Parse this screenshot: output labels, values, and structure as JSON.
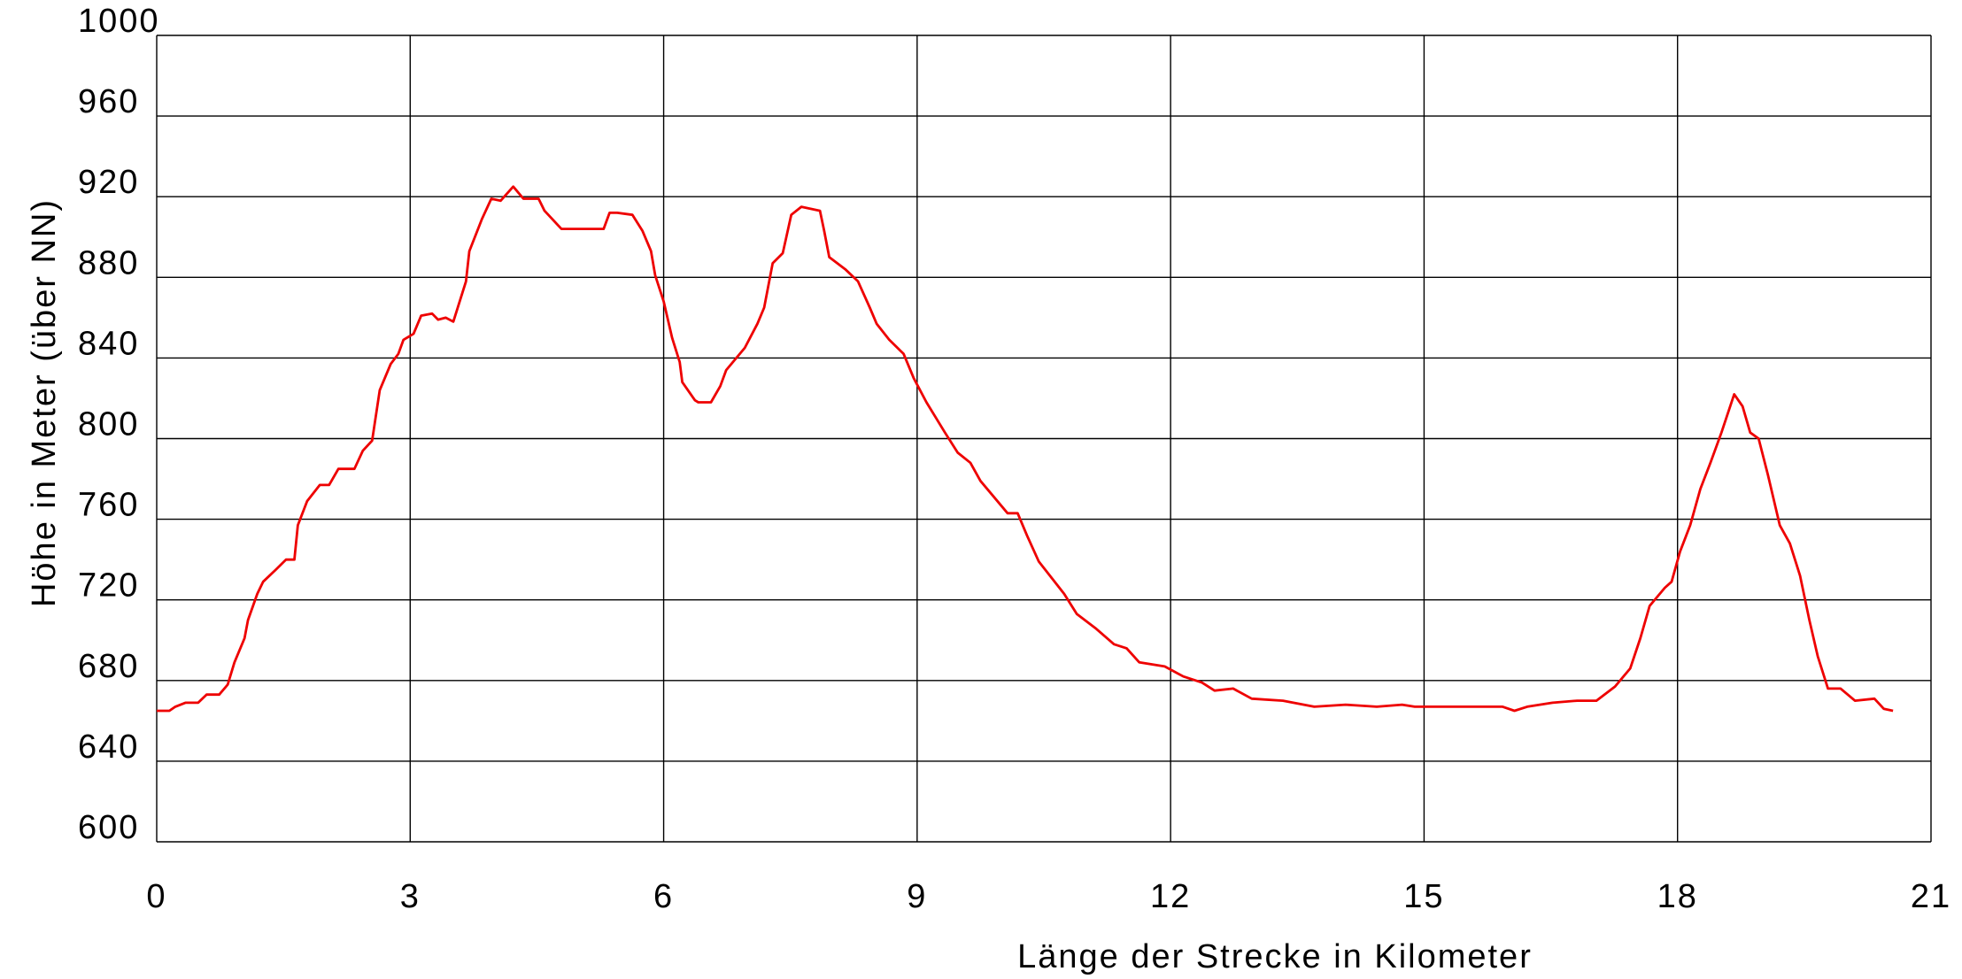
{
  "chart_data": {
    "type": "line",
    "xlabel": "Länge der Strecke in Kilometer",
    "ylabel": "Höhe in Meter (über NN)",
    "xlim": [
      0,
      21
    ],
    "xticks": [
      0,
      3,
      6,
      9,
      12,
      15,
      18,
      21
    ],
    "ylim": [
      600,
      1000
    ],
    "yticks": [
      600,
      640,
      680,
      720,
      760,
      800,
      840,
      880,
      920,
      960,
      1000
    ],
    "grid": true,
    "series": [
      {
        "color": "#ee0000",
        "x": [
          0,
          0.15,
          0.22,
          0.34,
          0.49,
          0.59,
          0.74,
          0.84,
          0.92,
          1.04,
          1.08,
          1.19,
          1.26,
          1.41,
          1.53,
          1.63,
          1.67,
          1.78,
          1.93,
          2.04,
          2.15,
          2.34,
          2.44,
          2.55,
          2.64,
          2.77,
          2.86,
          2.92,
          3.04,
          3.13,
          3.26,
          3.33,
          3.42,
          3.51,
          3.66,
          3.7,
          3.85,
          3.96,
          4.07,
          4.22,
          4.34,
          4.52,
          4.59,
          4.79,
          5.29,
          5.36,
          5.45,
          5.63,
          5.75,
          5.85,
          5.9,
          6.0,
          6.1,
          6.19,
          6.22,
          6.37,
          6.41,
          6.56,
          6.67,
          6.74,
          6.96,
          7.11,
          7.19,
          7.29,
          7.41,
          7.51,
          7.63,
          7.85,
          7.9,
          7.96,
          8.15,
          8.3,
          8.44,
          8.52,
          8.67,
          8.84,
          8.96,
          9.11,
          9.33,
          9.48,
          9.63,
          9.75,
          9.93,
          10.07,
          10.19,
          10.3,
          10.44,
          10.59,
          10.74,
          10.89,
          11.11,
          11.33,
          11.48,
          11.63,
          11.93,
          12.15,
          12.37,
          12.52,
          12.74,
          12.96,
          13.33,
          13.7,
          14.07,
          14.44,
          14.74,
          14.89,
          15.93,
          16.07,
          16.22,
          16.52,
          16.81,
          17.04,
          17.26,
          17.44,
          17.56,
          17.67,
          17.85,
          17.93,
          18.03,
          18.15,
          18.27,
          18.39,
          18.52,
          18.67,
          18.77,
          18.86,
          18.96,
          19.07,
          19.21,
          19.33,
          19.45,
          19.56,
          19.66,
          19.78,
          19.93,
          20.1,
          20.33,
          20.44,
          20.55
        ],
        "values": [
          665,
          665,
          667,
          669,
          669,
          673,
          673,
          678,
          689,
          701,
          710,
          723,
          729,
          735,
          740,
          740,
          757,
          769,
          777,
          777,
          785,
          785,
          794,
          799,
          824,
          837,
          842,
          849,
          852,
          861,
          862,
          859,
          860,
          858,
          878,
          893,
          909,
          919,
          918,
          925,
          919,
          919,
          913,
          904,
          904,
          912,
          912,
          911,
          903,
          893,
          881,
          868,
          850,
          838,
          828,
          819,
          818,
          818,
          826,
          834,
          845,
          857,
          865,
          887,
          892,
          911,
          915,
          913,
          903,
          890,
          884,
          878,
          865,
          857,
          849,
          842,
          830,
          818,
          803,
          793,
          788,
          779,
          770,
          763,
          763,
          752,
          739,
          731,
          723,
          713,
          706,
          698,
          696,
          689,
          687,
          682,
          679,
          675,
          676,
          671,
          670,
          667,
          668,
          667,
          668,
          667,
          667,
          665,
          667,
          669,
          670,
          670,
          677,
          686,
          701,
          717,
          726,
          729,
          744,
          757,
          775,
          788,
          803,
          822,
          816,
          803,
          800,
          782,
          757,
          748,
          732,
          710,
          692,
          676,
          676,
          670,
          671,
          666,
          665
        ]
      }
    ]
  }
}
